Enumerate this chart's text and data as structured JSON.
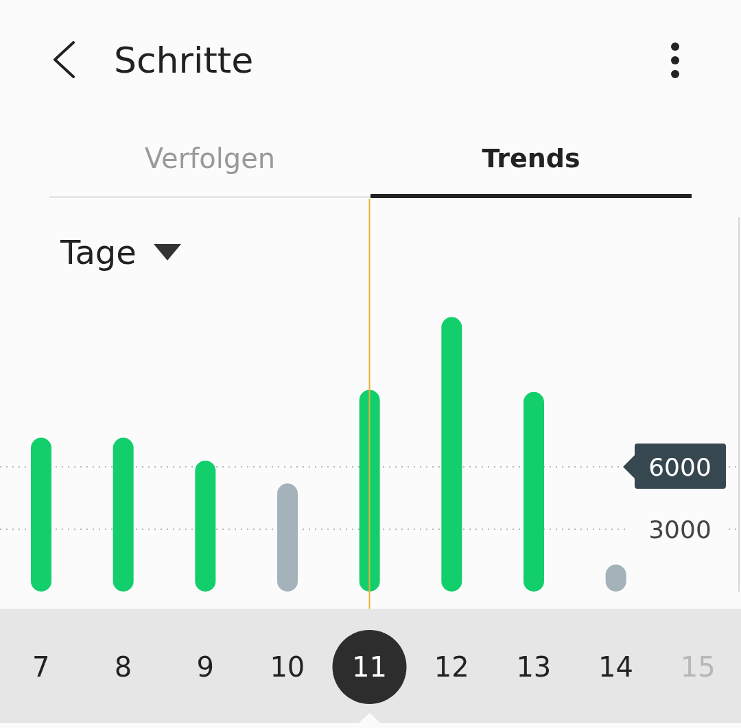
{
  "chart_data": {
    "type": "bar",
    "title": "Schritte",
    "annotations": [
      "Verfolgen",
      "Trends",
      "Tage"
    ],
    "categories": [
      "7",
      "8",
      "9",
      "10",
      "11",
      "12",
      "13",
      "14",
      "15"
    ],
    "values": [
      7400,
      7400,
      6300,
      5200,
      9700,
      13200,
      9600,
      1300,
      null
    ],
    "colors": [
      "#12cf6c",
      "#12cf6c",
      "#12cf6c",
      "#a4b2ba",
      "#12cf6c",
      "#12cf6c",
      "#12cf6c",
      "#a4b2ba",
      "#a4b2ba"
    ],
    "ylim": [
      0,
      18000
    ],
    "yticks": [
      3000,
      6000
    ],
    "grid": "y",
    "ref_lines": [
      {
        "axis": "x",
        "value": "11",
        "color": "#e3b33a"
      }
    ]
  }
}
